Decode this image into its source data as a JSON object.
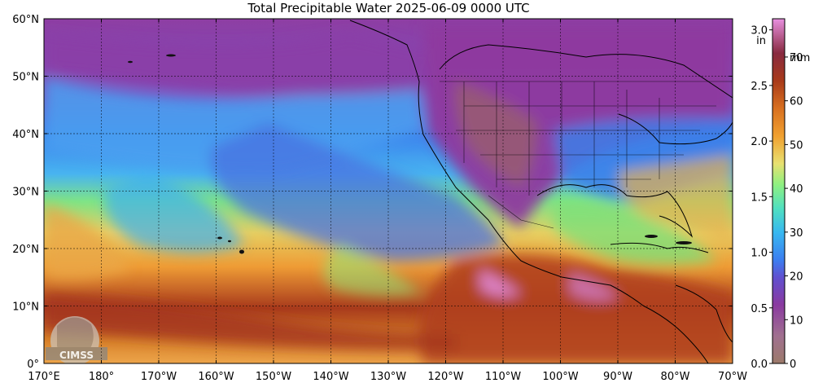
{
  "title": "Total Precipitable Water  2025-06-09 0000 UTC",
  "lat_labels": [
    "60°N",
    "50°N",
    "40°N",
    "30°N",
    "20°N",
    "10°N",
    "0°"
  ],
  "lon_labels": [
    "170°E",
    "180°",
    "170°W",
    "160°W",
    "150°W",
    "140°W",
    "130°W",
    "120°W",
    "110°W",
    "100°W",
    "90°W",
    "80°W",
    "70°W"
  ],
  "colorbar": {
    "in_unit": "in",
    "mm_unit": "mm",
    "in_ticks": [
      "3.0",
      "2.5",
      "2.0",
      "1.5",
      "1.0",
      "0.5",
      "0.0"
    ],
    "in_values": [
      3.0,
      2.5,
      2.0,
      1.5,
      1.0,
      0.5,
      0.0
    ],
    "mm_ticks": [
      "70",
      "60",
      "50",
      "40",
      "30",
      "20",
      "10",
      "0"
    ],
    "mm_values": [
      70,
      60,
      50,
      40,
      30,
      20,
      10,
      0
    ]
  },
  "logo": {
    "text": "CIMSS"
  },
  "colors": {
    "dry": "#9c6b5a",
    "low": "#8e3ea3",
    "mid_low": "#3a8ef0",
    "mid": "#7ee87a",
    "mid_high": "#f0b040",
    "high": "#b03a20",
    "extreme": "#e08ad8"
  }
}
